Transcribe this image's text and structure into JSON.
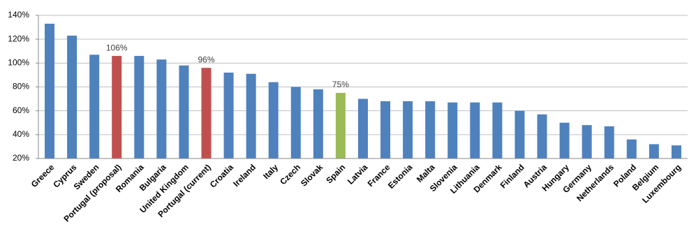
{
  "chart_data": {
    "type": "bar",
    "categories": [
      "Greece",
      "Cyprus",
      "Sweden",
      "Portugal (proposal)",
      "Romania",
      "Bulgaria",
      "United Kingdom",
      "Portugal (current)",
      "Croatia",
      "Ireland",
      "Italy",
      "Czech",
      "Slovak",
      "Spain",
      "Latvia",
      "France",
      "Estonia",
      "Malta",
      "Slovenia",
      "Lithuania",
      "Denmark",
      "Finland",
      "Austria",
      "Hungary",
      "Germany",
      "Netherlands",
      "Poland",
      "Belgium",
      "Luxembourg"
    ],
    "values": [
      133,
      123,
      107,
      106,
      106,
      103,
      98,
      96,
      92,
      91,
      84,
      80,
      78,
      75,
      70,
      68,
      68,
      68,
      67,
      67,
      67,
      60,
      57,
      50,
      48,
      47,
      36,
      32,
      31
    ],
    "value_labels": [
      null,
      null,
      null,
      "106%",
      null,
      null,
      null,
      "96%",
      null,
      null,
      null,
      null,
      null,
      "75%",
      null,
      null,
      null,
      null,
      null,
      null,
      null,
      null,
      null,
      null,
      null,
      null,
      null,
      null,
      null
    ],
    "colors": [
      "#4f81bd",
      "#4f81bd",
      "#4f81bd",
      "#c0504d",
      "#4f81bd",
      "#4f81bd",
      "#4f81bd",
      "#c0504d",
      "#4f81bd",
      "#4f81bd",
      "#4f81bd",
      "#4f81bd",
      "#4f81bd",
      "#9bbb59",
      "#4f81bd",
      "#4f81bd",
      "#4f81bd",
      "#4f81bd",
      "#4f81bd",
      "#4f81bd",
      "#4f81bd",
      "#4f81bd",
      "#4f81bd",
      "#4f81bd",
      "#4f81bd",
      "#4f81bd",
      "#4f81bd",
      "#4f81bd",
      "#4f81bd"
    ],
    "ylim": [
      20,
      140
    ],
    "yticks": [
      {
        "value": 20,
        "label": "20%"
      },
      {
        "value": 40,
        "label": "40%"
      },
      {
        "value": 60,
        "label": "60%"
      },
      {
        "value": 80,
        "label": "80%"
      },
      {
        "value": 100,
        "label": "100%"
      },
      {
        "value": 120,
        "label": "120%"
      },
      {
        "value": 140,
        "label": "140%"
      }
    ],
    "grid": true
  }
}
